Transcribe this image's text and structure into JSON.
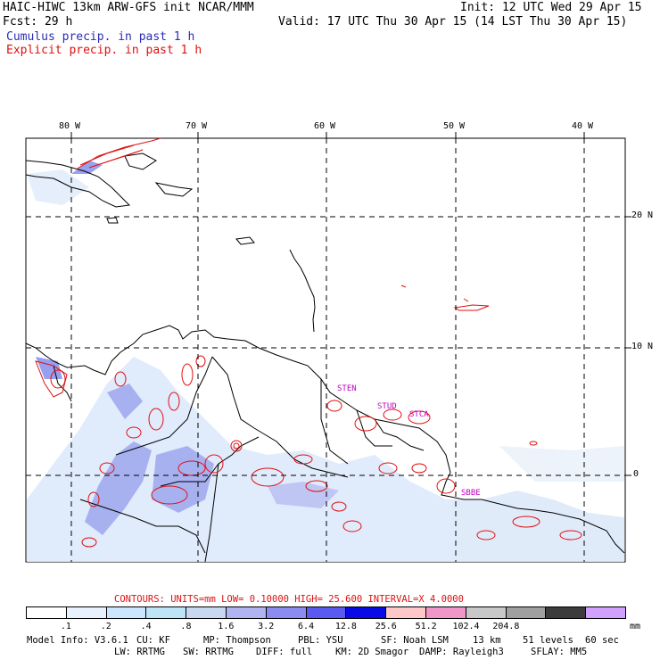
{
  "header": {
    "title": "HAIC-HIWC 13km ARW-GFS init  NCAR/MMM",
    "init": "Init: 12 UTC Wed 29 Apr 15",
    "fcst": "Fcst:   29 h",
    "valid": "Valid: 17 UTC Thu 30 Apr 15 (14 LST Thu 30 Apr 15)",
    "cumulus": "Cumulus precip. in past 1 h",
    "explicit": "Explicit precip. in past 1 h"
  },
  "axes": {
    "lon_labels": [
      "80 W",
      "70 W",
      "60 W",
      "50 W",
      "40 W"
    ],
    "lat_labels": [
      "20 N",
      "10 N",
      "0"
    ]
  },
  "stations": [
    "STEN",
    "STUD",
    "STCA",
    "SBBE"
  ],
  "contours": {
    "label": "CONTOURS:  UNITS=mm  LOW= 0.10000     HIGH=  25.600     INTERVAL=X  4.0000"
  },
  "colorbar": {
    "colors": [
      "#ffffff",
      "#e8f2ff",
      "#cde6ff",
      "#bde4f7",
      "#c8d8f0",
      "#b0b4f0",
      "#8c8cf0",
      "#5a5af0",
      "#0a0ae6",
      "#ffc8c8",
      "#f096c8",
      "#c8c8c8",
      "#a0a0a0",
      "#3c3c3c",
      "#d2a0ff"
    ],
    "labels": [
      ".1",
      ".2",
      ".4",
      ".8",
      "1.6",
      "3.2",
      "6.4",
      "12.8",
      "25.6",
      "51.2",
      "102.4",
      "204.8"
    ],
    "unit": "mm"
  },
  "footer": {
    "line1": [
      "Model Info: V3.6.1",
      "CU: KF",
      "MP: Thompson",
      "PBL: YSU",
      "SF: Noah LSM",
      "13 km",
      "51 levels",
      "60 sec"
    ],
    "line2": [
      "LW: RRTMG",
      "SW: RRTMG",
      "DIFF: full",
      "KM: 2D Smagor",
      "DAMP: Rayleigh3",
      "SFLAY: MM5"
    ]
  }
}
